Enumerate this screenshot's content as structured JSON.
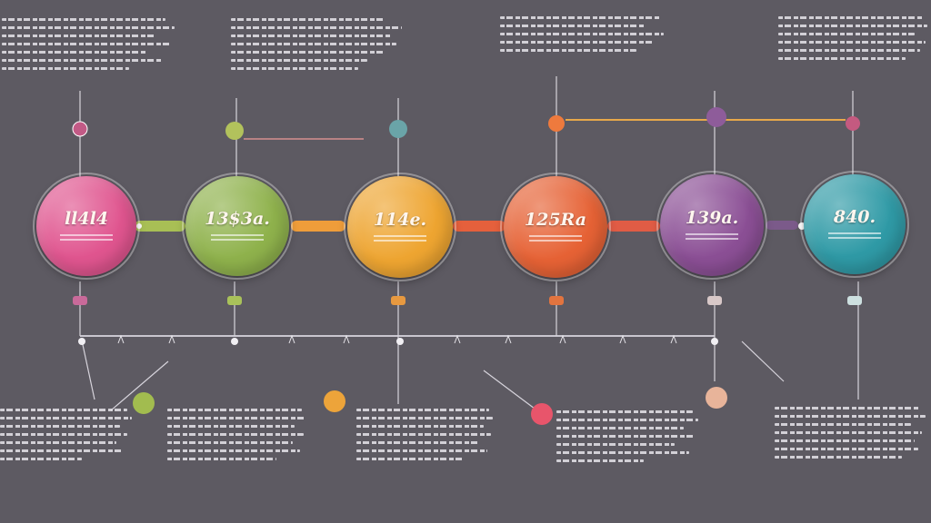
{
  "stages": [
    {
      "value": "ll4l4",
      "color": "#e0558f"
    },
    {
      "value": "13$3a.",
      "color": "#8fb24c"
    },
    {
      "value": "114e.",
      "color": "#eea531"
    },
    {
      "value": "125Ra",
      "color": "#e66235"
    },
    {
      "value": "139a.",
      "color": "#8b4f95"
    },
    {
      "value": "840.",
      "color": "#2f9aa6"
    }
  ],
  "colors": {
    "background": "#5d5a62",
    "track": "#c9c6cf",
    "text_lines": "#e6e4ea"
  }
}
